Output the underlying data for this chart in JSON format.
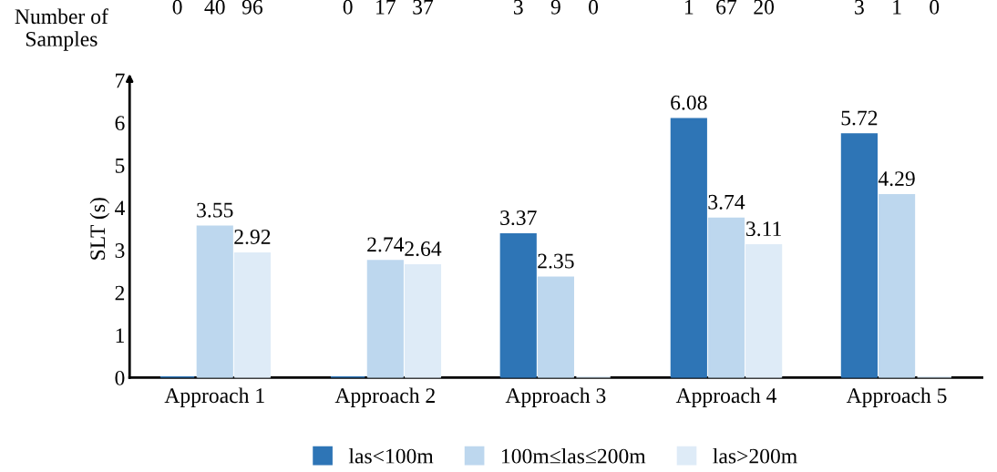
{
  "chart_data": {
    "type": "bar",
    "ylabel": "SLT (s)",
    "categories": [
      "Approach 1",
      "Approach 2",
      "Approach 3",
      "Approach 4",
      "Approach 5"
    ],
    "series": [
      {
        "name": "las<100m",
        "color": "#2e75b6",
        "values": [
          0,
          0,
          3.37,
          6.08,
          5.72
        ],
        "value_labels": [
          null,
          null,
          "3.37",
          "6.08",
          "5.72"
        ]
      },
      {
        "name": "100m≤las≤200m",
        "color": "#bdd7ee",
        "values": [
          3.55,
          2.74,
          2.35,
          3.74,
          4.29
        ],
        "value_labels": [
          "3.55",
          "2.74",
          "2.35",
          "3.74",
          "4.29"
        ]
      },
      {
        "name": "las>200m",
        "color": "#deebf7",
        "values": [
          2.92,
          2.64,
          0,
          3.11,
          0
        ],
        "value_labels": [
          "2.92",
          "2.64",
          null,
          "3.11",
          null
        ]
      }
    ],
    "ylim": [
      0,
      7
    ],
    "yticks": [
      0,
      1,
      2,
      3,
      4,
      5,
      6,
      7
    ],
    "grid": false,
    "legend": "bottom",
    "annotations": [
      "Number of\nSamples",
      "0",
      "40",
      "96",
      "0",
      "17",
      "37",
      "3",
      "9",
      "0",
      "1",
      "67",
      "20",
      "3",
      "1",
      "0"
    ]
  }
}
